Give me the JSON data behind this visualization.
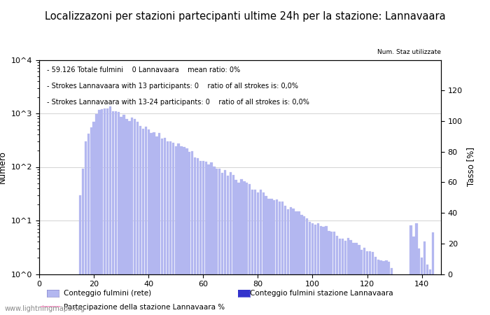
{
  "title": "Localizzazoni per stazioni partecipanti ultime 24h per la stazione: Lannavaara",
  "annotation_lines": [
    "59.126 Totale fulmini    0 Lannavaara    mean ratio: 0%",
    "Strokes Lannavaara with 13 participants: 0    ratio of all strokes is: 0,0%",
    "Strokes Lannavaara with 13-24 participants: 0    ratio of all strokes is: 0,0%"
  ],
  "ylabel_left": "Numero",
  "ylabel_right": "Tasso [%]",
  "bar_color_light": "#b3b7f0",
  "bar_color_dark": "#3333cc",
  "line_color": "#ff99cc",
  "yticks_right": [
    0,
    20,
    40,
    60,
    80,
    100,
    120
  ],
  "xmin": 0,
  "xmax": 147,
  "legend_labels": [
    "Conteggio fulmini (rete)",
    "Conteggio fulmini stazione Lannavaara",
    "Num. Staz utilizzate",
    "Partecipazione della stazione Lannavaara %"
  ],
  "watermark": "www.lightningmaps.org",
  "title_fontsize": 10.5,
  "annotation_fontsize": 7,
  "axis_label_fontsize": 8.5,
  "tick_fontsize": 8,
  "legend_fontsize": 7.5
}
